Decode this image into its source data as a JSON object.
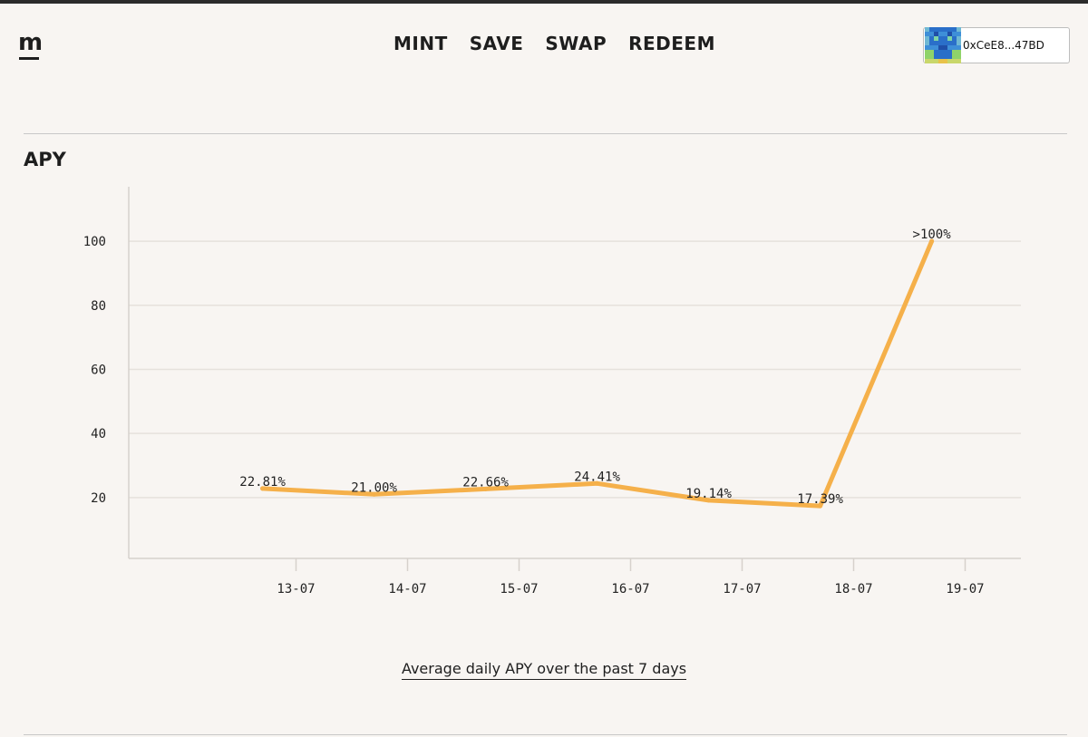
{
  "header": {
    "logo": "m",
    "nav": [
      "MINT",
      "SAVE",
      "SWAP",
      "REDEEM"
    ],
    "wallet_address": "0xCeE8...47BD"
  },
  "section": {
    "title": "APY",
    "caption": "Average daily APY over the past 7 days"
  },
  "colors": {
    "line": "#f5b04a",
    "grid": "#e6e1dc",
    "axis": "#d6d1cc"
  },
  "chart_data": {
    "type": "line",
    "x": [
      "13-07",
      "14-07",
      "15-07",
      "16-07",
      "17-07",
      "18-07",
      "19-07"
    ],
    "points": [
      {
        "x": 12.7,
        "y": 22.81,
        "label": "22.81%"
      },
      {
        "x": 13.7,
        "y": 21.0,
        "label": "21.00%"
      },
      {
        "x": 14.7,
        "y": 22.66,
        "label": "22.66%"
      },
      {
        "x": 15.7,
        "y": 24.41,
        "label": "24.41%"
      },
      {
        "x": 16.7,
        "y": 19.14,
        "label": "19.14%"
      },
      {
        "x": 17.7,
        "y": 17.39,
        "label": "17.39%"
      },
      {
        "x": 18.7,
        "y": 100,
        "label": ">100%"
      }
    ],
    "yticks": [
      20,
      40,
      60,
      80,
      100
    ],
    "ylim": [
      1,
      117
    ],
    "xlim": [
      11.5,
      19.5
    ],
    "xticks_values": [
      13,
      14,
      15,
      16,
      17,
      18,
      19
    ],
    "grid": true
  }
}
